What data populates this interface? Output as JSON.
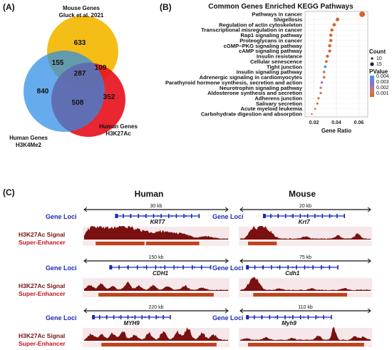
{
  "panel_a": {
    "label": "(A)",
    "mouse_label_1": "Mouse Genes",
    "mouse_label_2": "Gluck et al. 2021",
    "h3k4_label_1": "Human Genes",
    "h3k4_label_2": "H3K4Me2",
    "h3k27_label_1": "Human Genes",
    "h3k27_label_2": "H3K27Ac",
    "counts": {
      "mouse_only": "633",
      "mouse_h3k4": "155",
      "all_three": "287",
      "mouse_h3k27": "109",
      "h3k4_only": "840",
      "h3k4_h3k27": "508",
      "h3k27_only": "352"
    },
    "colors": {
      "mouse": "#f5be16",
      "h3k4": "#2b8ce6",
      "h3k27": "#e8141e"
    }
  },
  "panel_b": {
    "label": "(B)",
    "title": "Common Genes Enriched KEGG Pathways",
    "xlabel": "Gene Ratio",
    "legend_count_title": "Count",
    "legend_count_items": [
      "10",
      "15"
    ],
    "legend_p_title": "PValue",
    "legend_p_ticks": [
      "0.004",
      "0.003",
      "0.002",
      "0.001"
    ]
  },
  "chart_data": {
    "type": "scatter",
    "title": "Common Genes Enriched KEGG Pathways",
    "xlabel": "Gene Ratio",
    "xticks": [
      0.02,
      0.04,
      0.06
    ],
    "xlim": [
      0.012,
      0.068
    ],
    "categories": [
      "Pathways in cancer",
      "Shigellosis",
      "Regulation of actin cytoskeleton",
      "Transcriptional misregulation in cancer",
      "Rap1 signaling pathway",
      "Proteoglycans in cancer",
      "cGMP−PKG signaling pathway",
      "cAMP signaling pathway",
      "Insulin resistance",
      "Cellular senescence",
      "Tight junction",
      "Insulin signaling pathway",
      "Adrenergic signaling in cardiomyocytes",
      "Parathyroid hormone synthesis, secretion and action",
      "Neurotrophin signaling pathway",
      "Aldosterone synthesis and secretion",
      "Adherens junction",
      "Salivary secretion",
      "Acute myeloid leukemia",
      "Carbohydrate digestion and absorption"
    ],
    "gene_ratio": [
      0.063,
      0.041,
      0.038,
      0.036,
      0.035,
      0.035,
      0.034,
      0.034,
      0.032,
      0.031,
      0.03,
      0.029,
      0.029,
      0.027,
      0.026,
      0.026,
      0.024,
      0.023,
      0.021,
      0.018
    ],
    "count": [
      22,
      14,
      13,
      12,
      12,
      12,
      12,
      11,
      11,
      10,
      10,
      10,
      10,
      9,
      9,
      9,
      8,
      8,
      7,
      6
    ],
    "pvalue": [
      0.0007,
      0.0009,
      0.001,
      0.0011,
      0.001,
      0.0012,
      0.0012,
      0.0013,
      0.0011,
      0.0014,
      0.0042,
      0.002,
      0.0018,
      0.0022,
      0.0016,
      0.0019,
      0.0015,
      0.0014,
      0.0016,
      0.0013
    ]
  },
  "panel_c": {
    "label": "(C)",
    "human_title": "Human",
    "mouse_title": "Mouse",
    "row_labels": {
      "gene_loci": "Gene Loci",
      "signal": "H3K27Ac Signal",
      "super": "Super-Enhancer"
    },
    "human": [
      {
        "scale": "30 kb",
        "gene": "KRT7"
      },
      {
        "scale": "150 kb",
        "gene": "CDH1"
      },
      {
        "scale": "220 kb",
        "gene": "MYH9"
      }
    ],
    "mouse": [
      {
        "scale": "20 kb",
        "gene": "Krt7"
      },
      {
        "scale": "75 kb",
        "gene": "Cdh1"
      },
      {
        "scale": "110 kb",
        "gene": "Myh9"
      }
    ],
    "colors": {
      "gene": "#1a2ab5",
      "signal": "#7a1010",
      "super": "#c0431e",
      "label_red": "#c0141c",
      "label_blue": "#1a2ab5"
    }
  }
}
